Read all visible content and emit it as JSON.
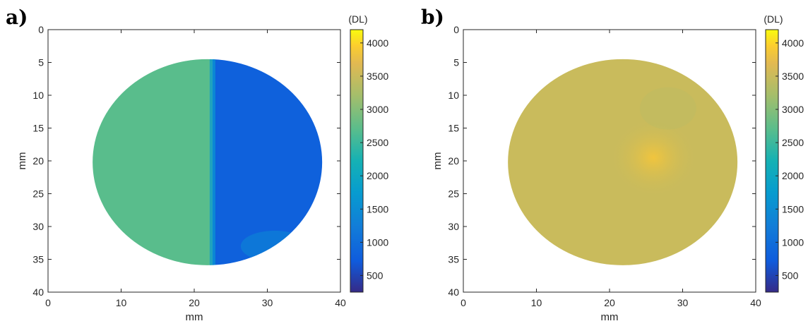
{
  "chart_data": [
    {
      "type": "heatmap",
      "panel_label": "a)",
      "title": "",
      "xlabel": "mm",
      "ylabel": "mm",
      "xlim": [
        0,
        40
      ],
      "ylim": [
        40,
        0
      ],
      "y_reversed": true,
      "xticks": [
        0,
        10,
        20,
        30,
        40
      ],
      "yticks": [
        0,
        5,
        10,
        15,
        20,
        25,
        30,
        35,
        40
      ],
      "colorbar": {
        "label": "(DL)",
        "ticks": [
          500,
          1000,
          1500,
          2000,
          2500,
          3000,
          3500,
          4000
        ],
        "range": [
          250,
          4200
        ],
        "colormap": "parula"
      },
      "circle": {
        "cx": 21.8,
        "cy": 20.2,
        "r": 15.7
      },
      "regions": [
        {
          "name": "left half",
          "x_range": [
            6.0,
            22.5
          ],
          "value": 2700
        },
        {
          "name": "right half",
          "x_range": [
            22.5,
            37.5
          ],
          "value": 800
        }
      ],
      "grid": false
    },
    {
      "type": "heatmap",
      "panel_label": "b)",
      "title": "",
      "xlabel": "mm",
      "ylabel": "mm",
      "xlim": [
        0,
        40
      ],
      "ylim": [
        40,
        0
      ],
      "y_reversed": true,
      "xticks": [
        0,
        10,
        20,
        30,
        40
      ],
      "yticks": [
        0,
        5,
        10,
        15,
        20,
        25,
        30,
        35,
        40
      ],
      "colorbar": {
        "label": "(DL)",
        "ticks": [
          500,
          1000,
          1500,
          2000,
          2500,
          3000,
          3500,
          4000
        ],
        "range": [
          250,
          4200
        ],
        "colormap": "parula"
      },
      "circle": {
        "cx": 21.8,
        "cy": 20.2,
        "r": 15.7
      },
      "regions": [
        {
          "name": "uniform field",
          "value": 3500
        },
        {
          "name": "hot spot",
          "center": [
            26,
            19.5
          ],
          "peak_value": 3850
        }
      ],
      "grid": false
    }
  ]
}
